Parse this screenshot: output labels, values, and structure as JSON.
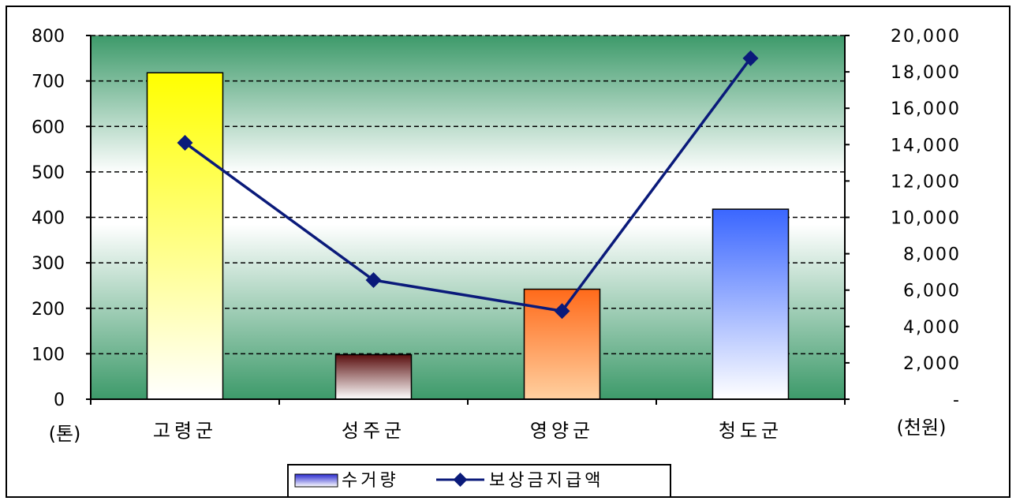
{
  "chart_data": {
    "type": "bar+line",
    "categories": [
      "고령군",
      "성주군",
      "영양군",
      "청도군"
    ],
    "series": [
      {
        "name": "수거량",
        "type": "bar",
        "axis": "left",
        "values": [
          718,
          98,
          242,
          418
        ]
      },
      {
        "name": "보상금지급액",
        "type": "line",
        "axis": "right",
        "values": [
          14100,
          6550,
          4850,
          18750
        ]
      }
    ],
    "left_axis": {
      "unit_label": "(톤)",
      "ylim": [
        0,
        800
      ],
      "ticks": [
        "0",
        "100",
        "200",
        "300",
        "400",
        "500",
        "600",
        "700",
        "800"
      ]
    },
    "right_axis": {
      "unit_label": "(천원)",
      "ylim": [
        0,
        20000
      ],
      "ticks": [
        "-",
        "2,000",
        "4,000",
        "6,000",
        "8,000",
        "10,000",
        "12,000",
        "14,000",
        "16,000",
        "18,000",
        "20,000"
      ]
    },
    "grid": true,
    "legend_position": "bottom-center",
    "colors": {
      "plot_green": "#3d9a6a",
      "bar_gradients": [
        [
          "#ffff00",
          "#ffffff"
        ],
        [
          "#5a0e0e",
          "#ffffff"
        ],
        [
          "#ff6a1a",
          "#ffd0a0"
        ],
        [
          "#3a66ff",
          "#ffffff"
        ]
      ],
      "line": "#0a1a7a",
      "legend_bar": [
        "#2a2ad0",
        "#ffffff"
      ]
    }
  }
}
